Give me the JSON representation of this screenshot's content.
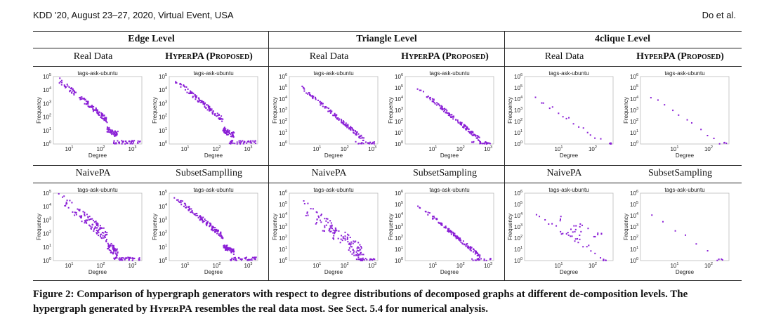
{
  "header": {
    "left": "KDD '20, August 23–27, 2020, Virtual Event, USA",
    "right": "Do et al."
  },
  "levels": [
    "Edge Level",
    "Triangle Level",
    "4clique Level"
  ],
  "top_labels": [
    "Real Data",
    "HyperPA (Proposed)"
  ],
  "bottom_labels": [
    "NaivePA",
    "SubsetSamplling",
    "NaivePA",
    "SubsetSampling",
    "NaivePA",
    "SubsetSampling"
  ],
  "caption": {
    "prefix": "Figure 2:  Comparison of hypergraph generators with respect to degree distributions of decomposed graphs at different de-composition levels. The hypergraph generated by ",
    "method": "HyperPA",
    "suffix": " resembles the real data most. See Sect. 5.4 for numerical analysis."
  },
  "chart_data": [
    {
      "type": "scatter",
      "title": "tags-ask-ubuntu",
      "xlabel": "Degree",
      "ylabel": "Frequency",
      "xticks": [
        "10",
        "10",
        "10"
      ],
      "xtick_exps": [
        "1",
        "2",
        "3"
      ],
      "yticks": [
        "10",
        "10",
        "10",
        "10",
        "10",
        "10"
      ],
      "ytick_exps": [
        "0",
        "1",
        "2",
        "3",
        "4",
        "5"
      ],
      "xlim_log": [
        0.5,
        3.3
      ],
      "ylim_log": [
        0,
        5
      ],
      "level": "Edge Level",
      "generator": "Real Data",
      "pattern": "edge",
      "seed": 11
    },
    {
      "type": "scatter",
      "title": "tags-ask-ubuntu",
      "xlabel": "Degree",
      "ylabel": "Frequency",
      "xticks": [
        "10",
        "10",
        "10"
      ],
      "xtick_exps": [
        "1",
        "2",
        "3"
      ],
      "yticks": [
        "10",
        "10",
        "10",
        "10",
        "10",
        "10"
      ],
      "ytick_exps": [
        "0",
        "1",
        "2",
        "3",
        "4",
        "5"
      ],
      "xlim_log": [
        0.5,
        3.3
      ],
      "ylim_log": [
        0,
        5
      ],
      "level": "Edge Level",
      "generator": "HyperPA (Proposed)",
      "pattern": "edge",
      "seed": 12
    },
    {
      "type": "scatter",
      "title": "tags-ask-ubuntu",
      "xlabel": "Degree",
      "ylabel": "Frequency",
      "xticks": [
        "10",
        "10",
        "10"
      ],
      "xtick_exps": [
        "1",
        "2",
        "3"
      ],
      "yticks": [
        "10",
        "10",
        "10",
        "10",
        "10",
        "10",
        "10"
      ],
      "ytick_exps": [
        "0",
        "1",
        "2",
        "3",
        "4",
        "5",
        "6"
      ],
      "xlim_log": [
        0,
        3.2
      ],
      "ylim_log": [
        0,
        6
      ],
      "level": "Triangle Level",
      "generator": "Real Data",
      "pattern": "tri",
      "seed": 13
    },
    {
      "type": "scatter",
      "title": "tags-ask-ubuntu",
      "xlabel": "Degree",
      "ylabel": "Frequency",
      "xticks": [
        "10",
        "10",
        "10"
      ],
      "xtick_exps": [
        "1",
        "2",
        "3"
      ],
      "yticks": [
        "10",
        "10",
        "10",
        "10",
        "10",
        "10",
        "10"
      ],
      "ytick_exps": [
        "0",
        "1",
        "2",
        "3",
        "4",
        "5",
        "6"
      ],
      "xlim_log": [
        0,
        3.2
      ],
      "ylim_log": [
        0,
        6
      ],
      "level": "Triangle Level",
      "generator": "HyperPA (Proposed)",
      "pattern": "tri",
      "seed": 14
    },
    {
      "type": "scatter",
      "title": "tags-ask-ubuntu",
      "xlabel": "Degree",
      "ylabel": "Frequency",
      "xticks": [
        "10",
        "10"
      ],
      "xtick_exps": [
        "1",
        "2"
      ],
      "yticks": [
        "10",
        "10",
        "10",
        "10",
        "10",
        "10",
        "10"
      ],
      "ytick_exps": [
        "0",
        "1",
        "2",
        "3",
        "4",
        "5",
        "6"
      ],
      "xlim_log": [
        0,
        2.6
      ],
      "ylim_log": [
        0,
        6
      ],
      "level": "4clique Level",
      "generator": "Real Data",
      "pattern": "clique",
      "seed": 15
    },
    {
      "type": "scatter",
      "title": "tags-ask-ubuntu",
      "xlabel": "Degree",
      "ylabel": "Frequency",
      "xticks": [
        "10",
        "10"
      ],
      "xtick_exps": [
        "1",
        "2"
      ],
      "yticks": [
        "10",
        "10",
        "10",
        "10",
        "10",
        "10",
        "10"
      ],
      "ytick_exps": [
        "0",
        "1",
        "2",
        "3",
        "4",
        "5",
        "6"
      ],
      "xlim_log": [
        0,
        2.6
      ],
      "ylim_log": [
        0,
        6
      ],
      "level": "4clique Level",
      "generator": "HyperPA (Proposed)",
      "pattern": "clique2",
      "seed": 16
    },
    {
      "type": "scatter",
      "title": "tags-ask-ubuntu",
      "xlabel": "Degree",
      "ylabel": "Frequency",
      "xticks": [
        "10",
        "10",
        "10"
      ],
      "xtick_exps": [
        "1",
        "2",
        "3"
      ],
      "yticks": [
        "10",
        "10",
        "10",
        "10",
        "10",
        "10"
      ],
      "ytick_exps": [
        "0",
        "1",
        "2",
        "3",
        "4",
        "5"
      ],
      "xlim_log": [
        0.5,
        3.3
      ],
      "ylim_log": [
        0,
        5
      ],
      "level": "Edge Level",
      "generator": "NaivePA",
      "pattern": "edge_noisy",
      "seed": 21
    },
    {
      "type": "scatter",
      "title": "tags-ask-ubuntu",
      "xlabel": "Degree",
      "ylabel": "Frequency",
      "xticks": [
        "10",
        "10",
        "10"
      ],
      "xtick_exps": [
        "1",
        "2",
        "3"
      ],
      "yticks": [
        "10",
        "10",
        "10",
        "10",
        "10",
        "10"
      ],
      "ytick_exps": [
        "0",
        "1",
        "2",
        "3",
        "4",
        "5"
      ],
      "xlim_log": [
        0.5,
        3.3
      ],
      "ylim_log": [
        0,
        5
      ],
      "level": "Edge Level",
      "generator": "SubsetSamplling",
      "pattern": "edge",
      "seed": 22
    },
    {
      "type": "scatter",
      "title": "tags-ask-ubuntu",
      "xlabel": "Degree",
      "ylabel": "Frequency",
      "xticks": [
        "10",
        "10",
        "10"
      ],
      "xtick_exps": [
        "1",
        "2",
        "3"
      ],
      "yticks": [
        "10",
        "10",
        "10",
        "10",
        "10",
        "10",
        "10"
      ],
      "ytick_exps": [
        "0",
        "1",
        "2",
        "3",
        "4",
        "5",
        "6"
      ],
      "xlim_log": [
        0,
        3.2
      ],
      "ylim_log": [
        0,
        6
      ],
      "level": "Triangle Level",
      "generator": "NaivePA",
      "pattern": "tri_noisy",
      "seed": 23
    },
    {
      "type": "scatter",
      "title": "tags-ask-ubuntu",
      "xlabel": "Degree",
      "ylabel": "Frequency",
      "xticks": [
        "10",
        "10",
        "10"
      ],
      "xtick_exps": [
        "1",
        "2",
        "3"
      ],
      "yticks": [
        "10",
        "10",
        "10",
        "10",
        "10",
        "10",
        "10"
      ],
      "ytick_exps": [
        "0",
        "1",
        "2",
        "3",
        "4",
        "5",
        "6"
      ],
      "xlim_log": [
        0,
        3.2
      ],
      "ylim_log": [
        0,
        6
      ],
      "level": "Triangle Level",
      "generator": "SubsetSampling",
      "pattern": "tri",
      "seed": 24
    },
    {
      "type": "scatter",
      "title": "tags-ask-ubuntu",
      "xlabel": "Degree",
      "ylabel": "Frequency",
      "xticks": [
        "10",
        "10"
      ],
      "xtick_exps": [
        "1",
        "2"
      ],
      "yticks": [
        "10",
        "10",
        "10",
        "10",
        "10",
        "10",
        "10"
      ],
      "ytick_exps": [
        "0",
        "1",
        "2",
        "3",
        "4",
        "5",
        "6"
      ],
      "xlim_log": [
        0,
        2.6
      ],
      "ylim_log": [
        0,
        6
      ],
      "level": "4clique Level",
      "generator": "NaivePA",
      "pattern": "clique_noisy",
      "seed": 25
    },
    {
      "type": "scatter",
      "title": "tags-ask-ubuntu",
      "xlabel": "Degree",
      "ylabel": "Frequency",
      "xticks": [
        "10",
        "10"
      ],
      "xtick_exps": [
        "1",
        "2"
      ],
      "yticks": [
        "10",
        "10",
        "10",
        "10",
        "10",
        "10",
        "10"
      ],
      "ytick_exps": [
        "0",
        "1",
        "2",
        "3",
        "4",
        "5",
        "6"
      ],
      "xlim_log": [
        0,
        2.6
      ],
      "ylim_log": [
        0,
        6
      ],
      "level": "4clique Level",
      "generator": "SubsetSampling",
      "pattern": "clique_sparse",
      "seed": 26
    }
  ]
}
